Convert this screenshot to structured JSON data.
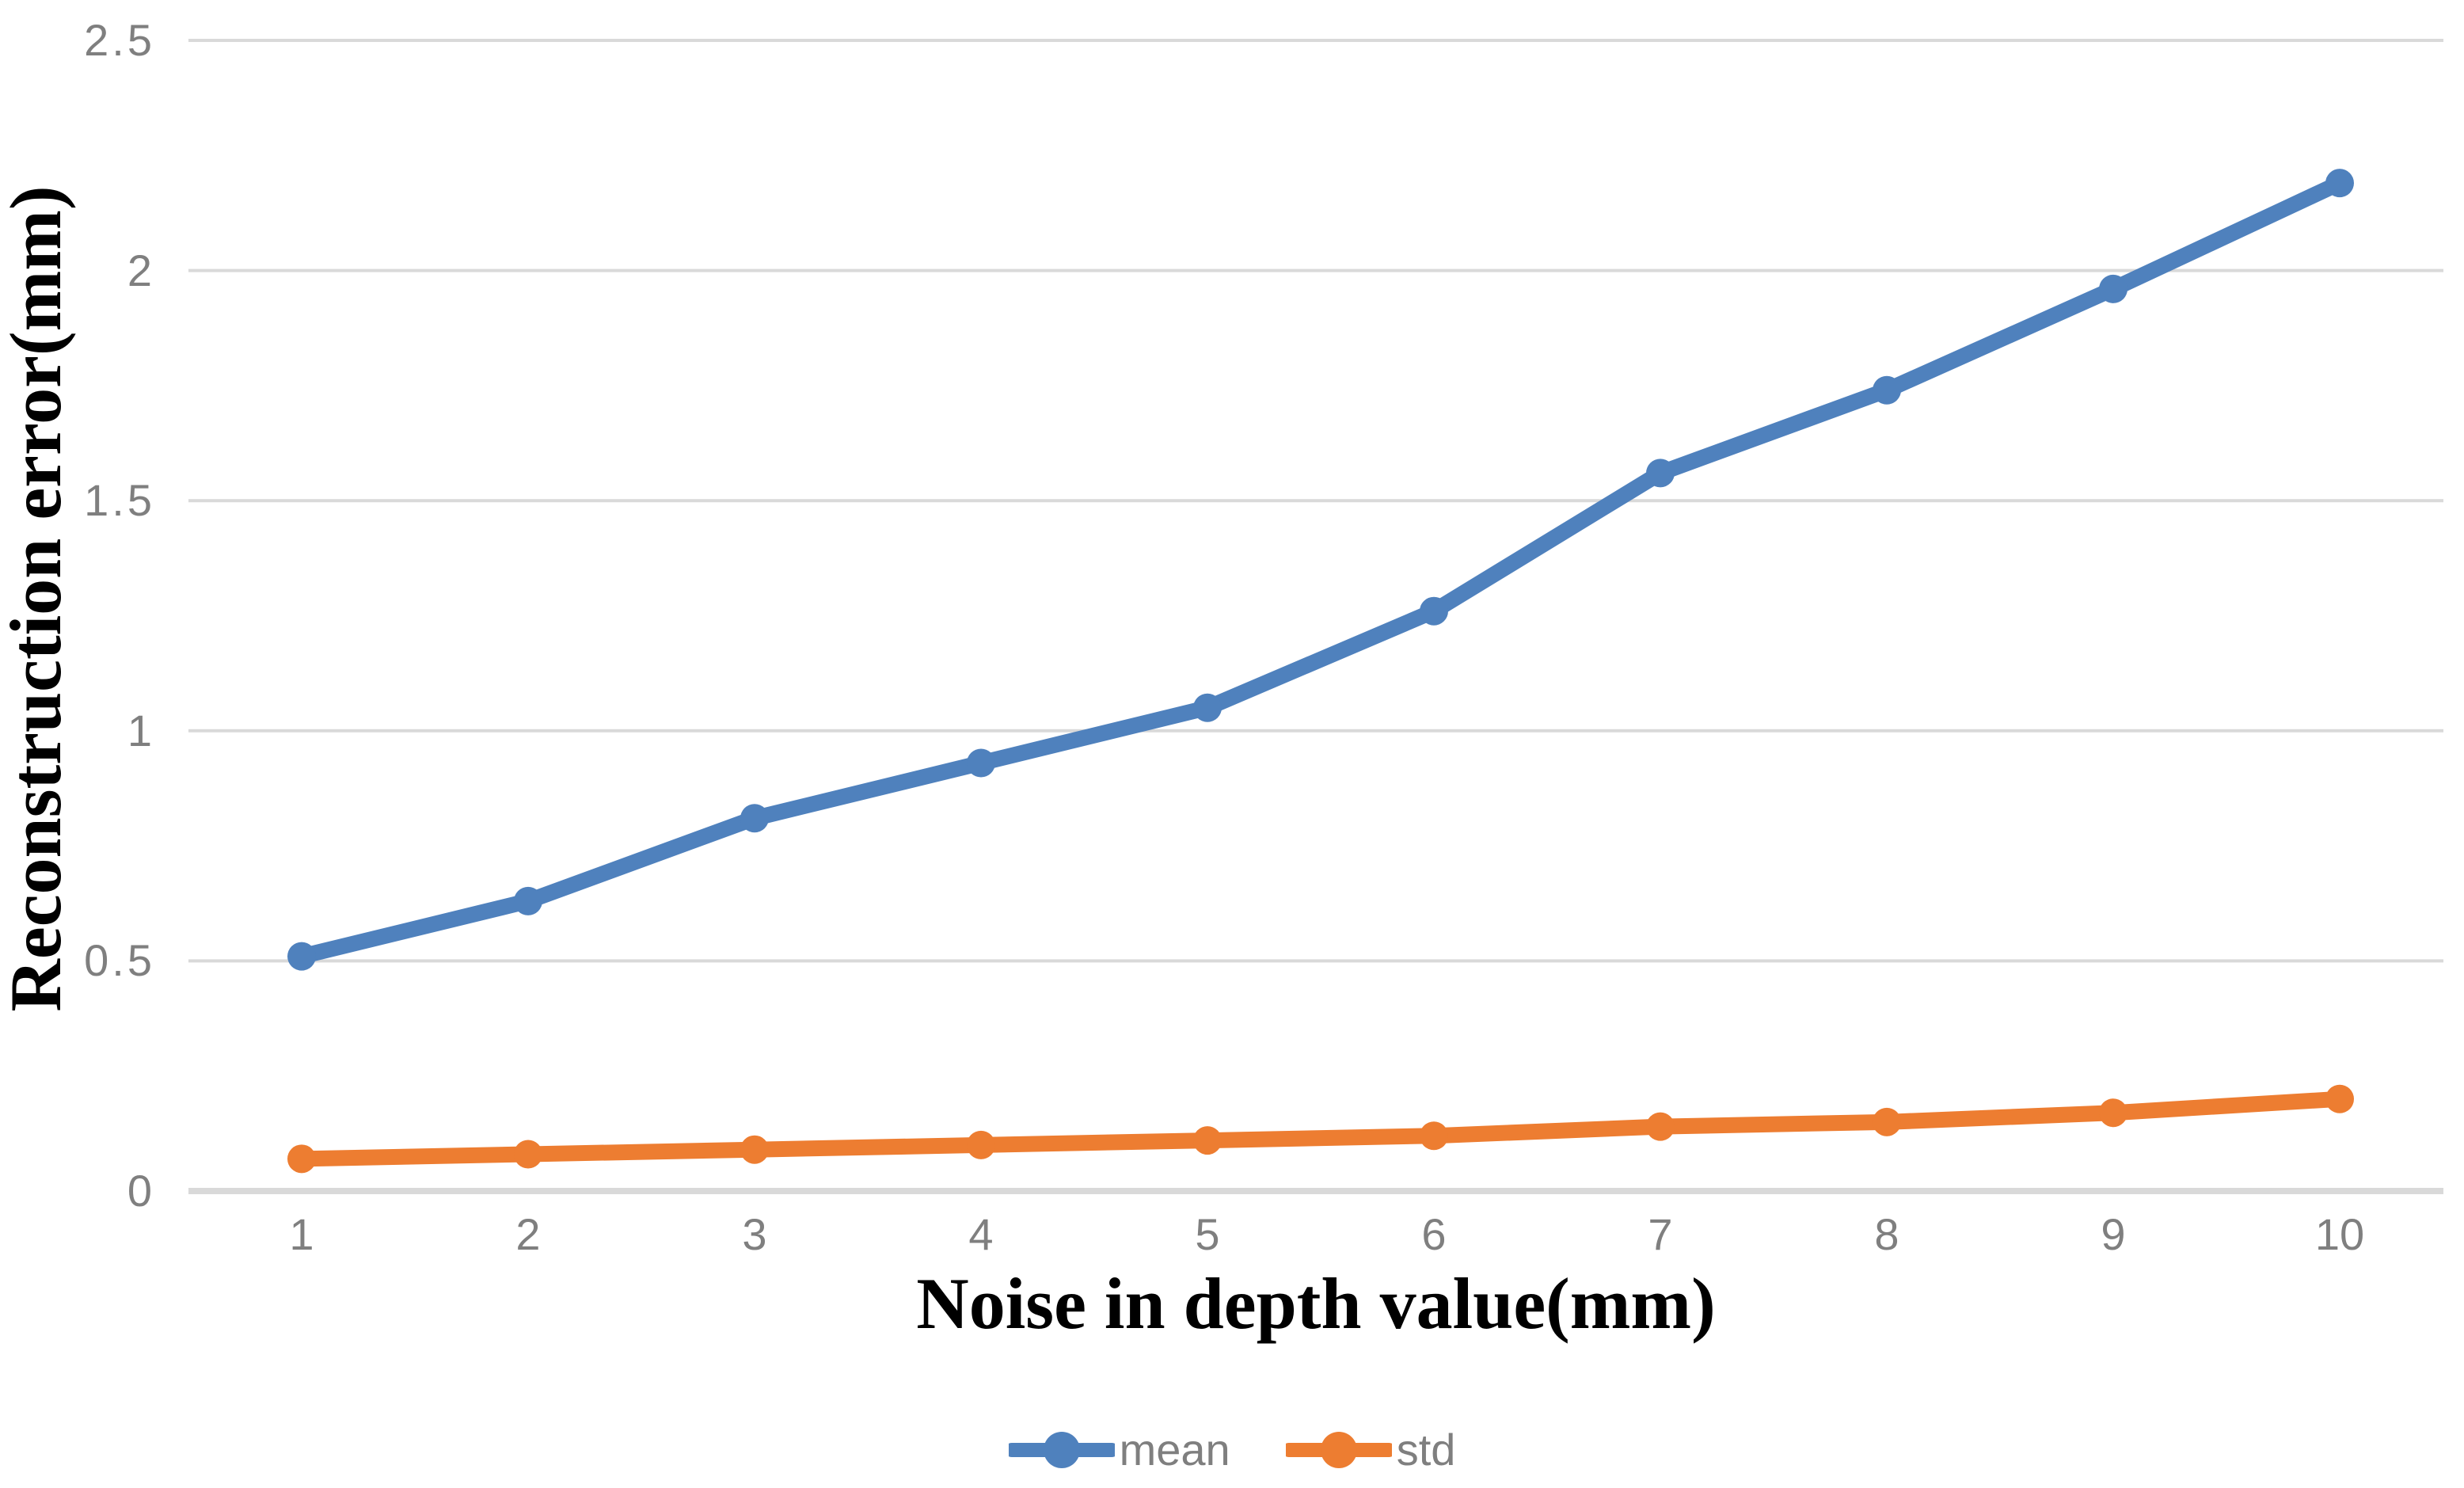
{
  "chart_data": {
    "type": "line",
    "title": "",
    "xlabel": "Noise in depth value(mm)",
    "ylabel": "Reconstruction error(mm)",
    "categories": [
      "1",
      "2",
      "3",
      "4",
      "5",
      "6",
      "7",
      "8",
      "9",
      "10"
    ],
    "series": [
      {
        "name": "mean",
        "color": "#4F81BD",
        "values": [
          0.51,
          0.63,
          0.81,
          0.93,
          1.05,
          1.26,
          1.56,
          1.74,
          1.96,
          2.19
        ]
      },
      {
        "name": "std",
        "color": "#ED7D31",
        "values": [
          0.07,
          0.08,
          0.09,
          0.1,
          0.11,
          0.12,
          0.14,
          0.15,
          0.17,
          0.2
        ]
      }
    ],
    "xlim": [
      1,
      10
    ],
    "ylim": [
      0,
      2.5
    ],
    "yticks": [
      0,
      0.5,
      1,
      1.5,
      2,
      2.5
    ],
    "ytick_labels": [
      "0",
      "0.5",
      "1",
      "1.5",
      "2",
      "2.5"
    ],
    "grid": true,
    "legend_position": "bottom",
    "colors": {
      "gridline": "#D9D9D9",
      "axis_line": "#D9D9D9",
      "tick_label": "#7F7F7F",
      "legend_text": "#7F7F7F",
      "axis_title": "#000000",
      "background": "#FFFFFF"
    }
  }
}
